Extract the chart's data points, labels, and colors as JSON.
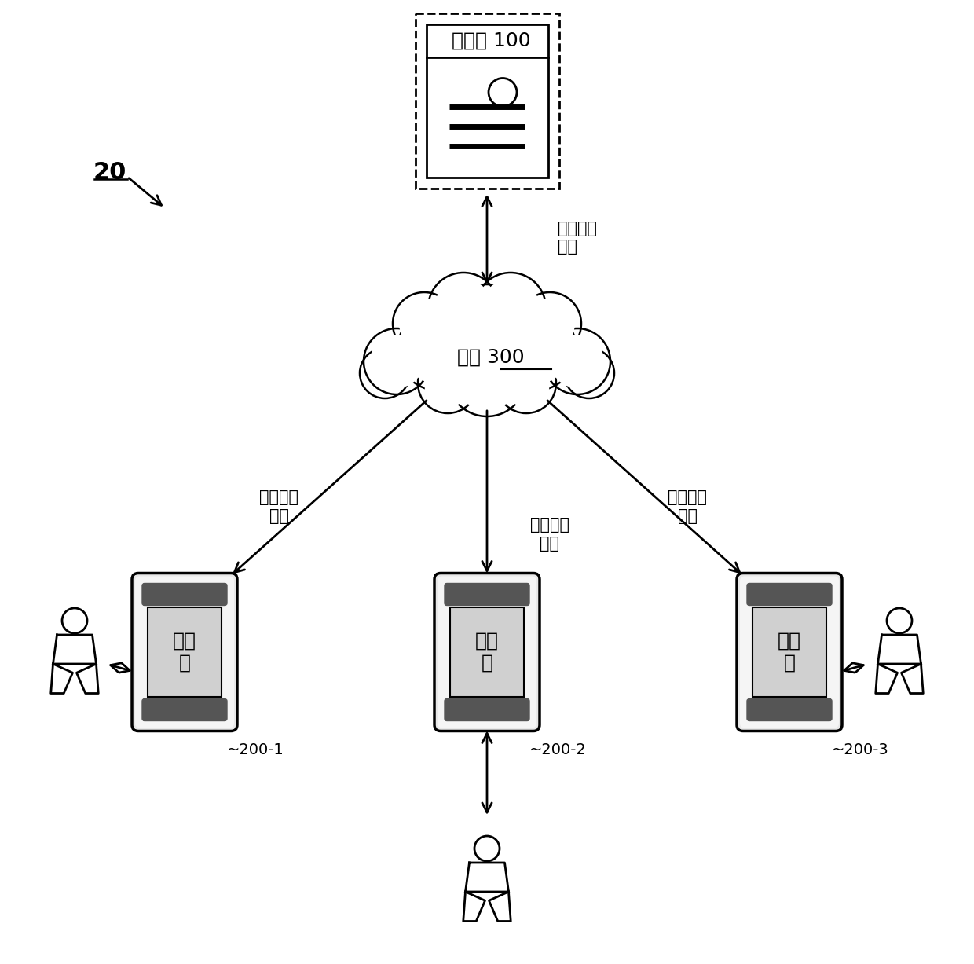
{
  "bg_color": "#ffffff",
  "title_label": "20",
  "server_label": "服务器 100",
  "network_label": "网络 300",
  "client_label": "客户\n端",
  "client_ids": [
    "200-1",
    "200-2",
    "200-3"
  ],
  "arrow_label": "头部装饰\n图像",
  "line_color": "#000000",
  "font_color": "#000000"
}
